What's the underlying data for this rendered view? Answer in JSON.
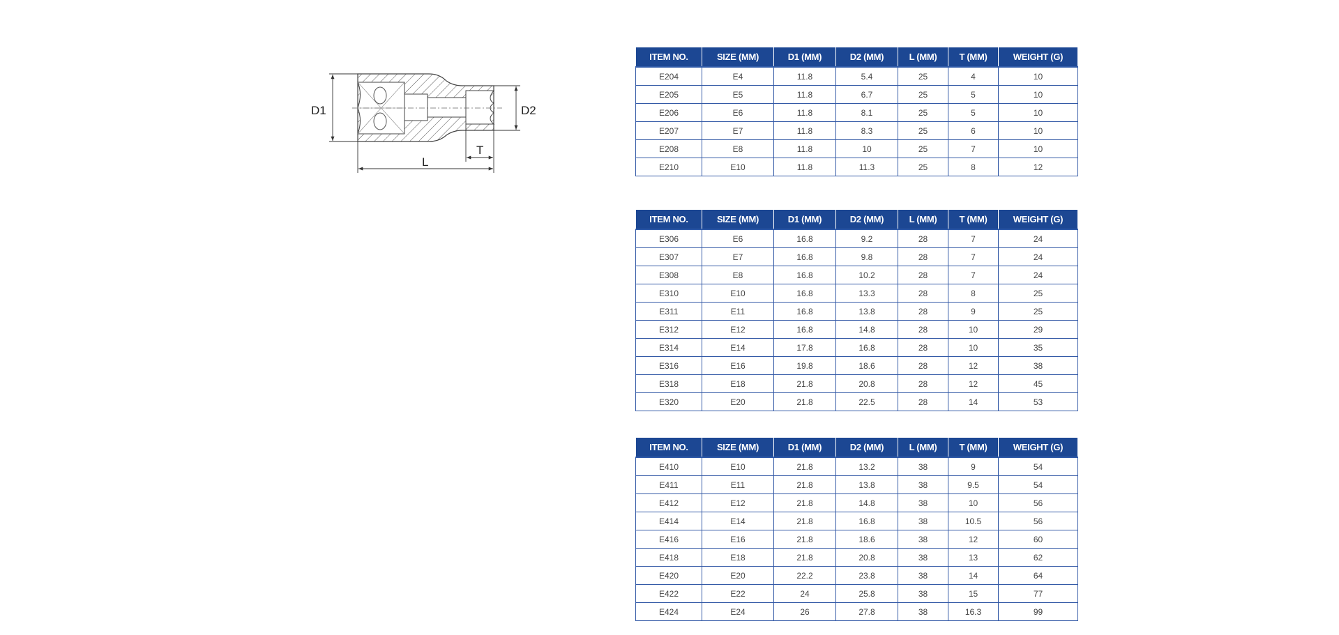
{
  "diagram": {
    "labels": {
      "d1": "D1",
      "d2": "D2",
      "l": "L",
      "t": "T"
    }
  },
  "colors": {
    "header_bg": "#1c4793",
    "border": "#3359a6"
  },
  "columns": [
    "ITEM NO.",
    "SIZE (MM)",
    "D1 (MM)",
    "D2 (MM)",
    "L (MM)",
    "T (MM)",
    "WEIGHT (G)"
  ],
  "tables": [
    {
      "rows": [
        [
          "E204",
          "E4",
          "11.8",
          "5.4",
          "25",
          "4",
          "10"
        ],
        [
          "E205",
          "E5",
          "11.8",
          "6.7",
          "25",
          "5",
          "10"
        ],
        [
          "E206",
          "E6",
          "11.8",
          "8.1",
          "25",
          "5",
          "10"
        ],
        [
          "E207",
          "E7",
          "11.8",
          "8.3",
          "25",
          "6",
          "10"
        ],
        [
          "E208",
          "E8",
          "11.8",
          "10",
          "25",
          "7",
          "10"
        ],
        [
          "E210",
          "E10",
          "11.8",
          "11.3",
          "25",
          "8",
          "12"
        ]
      ]
    },
    {
      "rows": [
        [
          "E306",
          "E6",
          "16.8",
          "9.2",
          "28",
          "7",
          "24"
        ],
        [
          "E307",
          "E7",
          "16.8",
          "9.8",
          "28",
          "7",
          "24"
        ],
        [
          "E308",
          "E8",
          "16.8",
          "10.2",
          "28",
          "7",
          "24"
        ],
        [
          "E310",
          "E10",
          "16.8",
          "13.3",
          "28",
          "8",
          "25"
        ],
        [
          "E311",
          "E11",
          "16.8",
          "13.8",
          "28",
          "9",
          "25"
        ],
        [
          "E312",
          "E12",
          "16.8",
          "14.8",
          "28",
          "10",
          "29"
        ],
        [
          "E314",
          "E14",
          "17.8",
          "16.8",
          "28",
          "10",
          "35"
        ],
        [
          "E316",
          "E16",
          "19.8",
          "18.6",
          "28",
          "12",
          "38"
        ],
        [
          "E318",
          "E18",
          "21.8",
          "20.8",
          "28",
          "12",
          "45"
        ],
        [
          "E320",
          "E20",
          "21.8",
          "22.5",
          "28",
          "14",
          "53"
        ]
      ]
    },
    {
      "rows": [
        [
          "E410",
          "E10",
          "21.8",
          "13.2",
          "38",
          "9",
          "54"
        ],
        [
          "E411",
          "E11",
          "21.8",
          "13.8",
          "38",
          "9.5",
          "54"
        ],
        [
          "E412",
          "E12",
          "21.8",
          "14.8",
          "38",
          "10",
          "56"
        ],
        [
          "E414",
          "E14",
          "21.8",
          "16.8",
          "38",
          "10.5",
          "56"
        ],
        [
          "E416",
          "E16",
          "21.8",
          "18.6",
          "38",
          "12",
          "60"
        ],
        [
          "E418",
          "E18",
          "21.8",
          "20.8",
          "38",
          "13",
          "62"
        ],
        [
          "E420",
          "E20",
          "22.2",
          "23.8",
          "38",
          "14",
          "64"
        ],
        [
          "E422",
          "E22",
          "24",
          "25.8",
          "38",
          "15",
          "77"
        ],
        [
          "E424",
          "E24",
          "26",
          "27.8",
          "38",
          "16.3",
          "99"
        ]
      ]
    }
  ]
}
